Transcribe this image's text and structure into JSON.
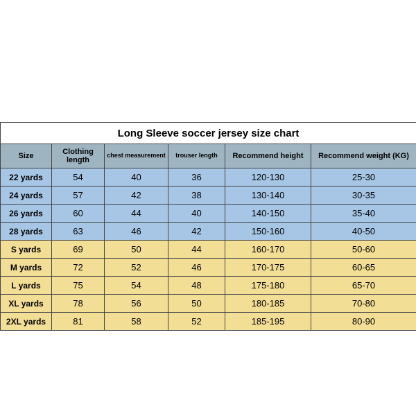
{
  "title": "Long Sleeve soccer jersey size chart",
  "colors": {
    "header_bg": "#9fb4c1",
    "kids_bg": "#a7c6e6",
    "adult_bg": "#f3de95",
    "border": "#444444",
    "title_bg": "#ffffff"
  },
  "columns": [
    {
      "key": "size",
      "label": "Size",
      "class": ""
    },
    {
      "key": "clothing_length",
      "label": "Clothing length",
      "class": ""
    },
    {
      "key": "chest",
      "label": "chest measurement",
      "class": "small"
    },
    {
      "key": "trouser_length",
      "label": "trouser length",
      "class": "small"
    },
    {
      "key": "rec_height",
      "label": "Recommend height",
      "class": ""
    },
    {
      "key": "rec_weight",
      "label": "Recommend weight (KG)",
      "class": ""
    }
  ],
  "rows": [
    {
      "group": "kids",
      "size": "22 yards",
      "clothing_length": "54",
      "chest": "40",
      "trouser_length": "36",
      "rec_height": "120-130",
      "rec_weight": "25-30"
    },
    {
      "group": "kids",
      "size": "24 yards",
      "clothing_length": "57",
      "chest": "42",
      "trouser_length": "38",
      "rec_height": "130-140",
      "rec_weight": "30-35"
    },
    {
      "group": "kids",
      "size": "26 yards",
      "clothing_length": "60",
      "chest": "44",
      "trouser_length": "40",
      "rec_height": "140-150",
      "rec_weight": "35-40"
    },
    {
      "group": "kids",
      "size": "28 yards",
      "clothing_length": "63",
      "chest": "46",
      "trouser_length": "42",
      "rec_height": "150-160",
      "rec_weight": "40-50"
    },
    {
      "group": "adult",
      "size": "S yards",
      "clothing_length": "69",
      "chest": "50",
      "trouser_length": "44",
      "rec_height": "160-170",
      "rec_weight": "50-60"
    },
    {
      "group": "adult",
      "size": "M yards",
      "clothing_length": "72",
      "chest": "52",
      "trouser_length": "46",
      "rec_height": "170-175",
      "rec_weight": "60-65"
    },
    {
      "group": "adult",
      "size": "L yards",
      "clothing_length": "75",
      "chest": "54",
      "trouser_length": "48",
      "rec_height": "175-180",
      "rec_weight": "65-70"
    },
    {
      "group": "adult",
      "size": "XL yards",
      "clothing_length": "78",
      "chest": "56",
      "trouser_length": "50",
      "rec_height": "180-185",
      "rec_weight": "70-80"
    },
    {
      "group": "adult",
      "size": "2XL yards",
      "clothing_length": "81",
      "chest": "58",
      "trouser_length": "52",
      "rec_height": "185-195",
      "rec_weight": "80-90"
    }
  ]
}
